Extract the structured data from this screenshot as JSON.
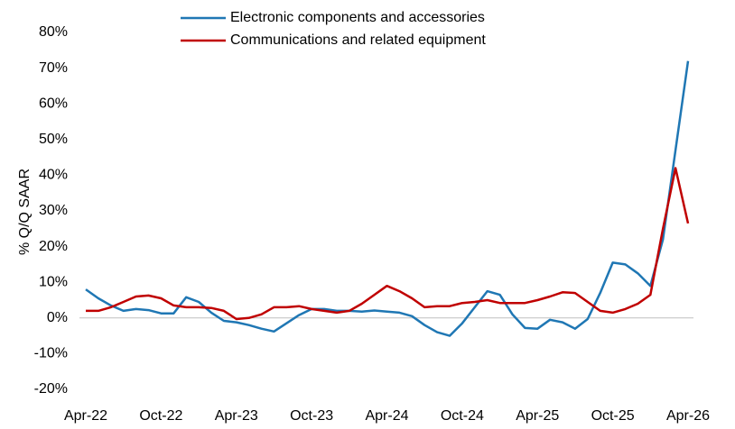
{
  "chart_data": {
    "type": "line",
    "y_label": "% Q/Q SAAR",
    "categories": [
      "Apr-22",
      null,
      null,
      null,
      null,
      null,
      "Oct-22",
      null,
      null,
      null,
      null,
      null,
      "Apr-23",
      null,
      null,
      null,
      null,
      null,
      "Oct-23",
      null,
      null,
      null,
      null,
      null,
      "Apr-24",
      null,
      null,
      null,
      null,
      null,
      "Oct-24",
      null,
      null,
      null,
      null,
      null,
      "Apr-25",
      null,
      null,
      null,
      null,
      null,
      "Oct-25",
      null,
      null,
      null,
      null,
      null,
      "Apr-26"
    ],
    "series": [
      {
        "name": "Electronic components and accessories",
        "color": "#1f77b4",
        "values": [
          8,
          5.5,
          3.5,
          2,
          2.5,
          2.2,
          1.3,
          1.3,
          5.8,
          4.5,
          1.5,
          -0.8,
          -1.2,
          -2,
          -3,
          -3.8,
          -1.5,
          0.8,
          2.5,
          2.5,
          2,
          2,
          1.8,
          2.1,
          1.8,
          1.5,
          0.5,
          -2,
          -4,
          -5,
          -1.5,
          3,
          7.5,
          6.5,
          1,
          -2.8,
          -3,
          -0.5,
          -1.2,
          -3,
          -0.3,
          7,
          15.5,
          15,
          12.5,
          9,
          22,
          47,
          72
        ]
      },
      {
        "name": "Communications and related equipment",
        "color": "#c00000",
        "values": [
          2,
          2,
          3,
          4.5,
          6,
          6.3,
          5.5,
          3.5,
          3,
          3,
          2.8,
          2,
          -0.3,
          0,
          1,
          3,
          3,
          3.3,
          2.5,
          2,
          1.5,
          2,
          4,
          6.5,
          9,
          7.5,
          5.5,
          3,
          3.3,
          3.3,
          4.2,
          4.5,
          5,
          4.2,
          4.2,
          4.2,
          5,
          6,
          7.2,
          7,
          4.5,
          2,
          1.5,
          2.5,
          4,
          6.5,
          25,
          42,
          26.5
        ]
      }
    ],
    "ylim": [
      -20,
      80
    ],
    "yticks": [
      {
        "value": -20,
        "label": "-20%"
      },
      {
        "value": -10,
        "label": "-10%"
      },
      {
        "value": 0,
        "label": "0%"
      },
      {
        "value": 10,
        "label": "10%"
      },
      {
        "value": 20,
        "label": "20%"
      },
      {
        "value": 30,
        "label": "30%"
      },
      {
        "value": 40,
        "label": "40%"
      },
      {
        "value": 50,
        "label": "50%"
      },
      {
        "value": 60,
        "label": "60%"
      },
      {
        "value": 70,
        "label": "70%"
      },
      {
        "value": 80,
        "label": "80%"
      }
    ],
    "grid": false,
    "legend": "top"
  }
}
